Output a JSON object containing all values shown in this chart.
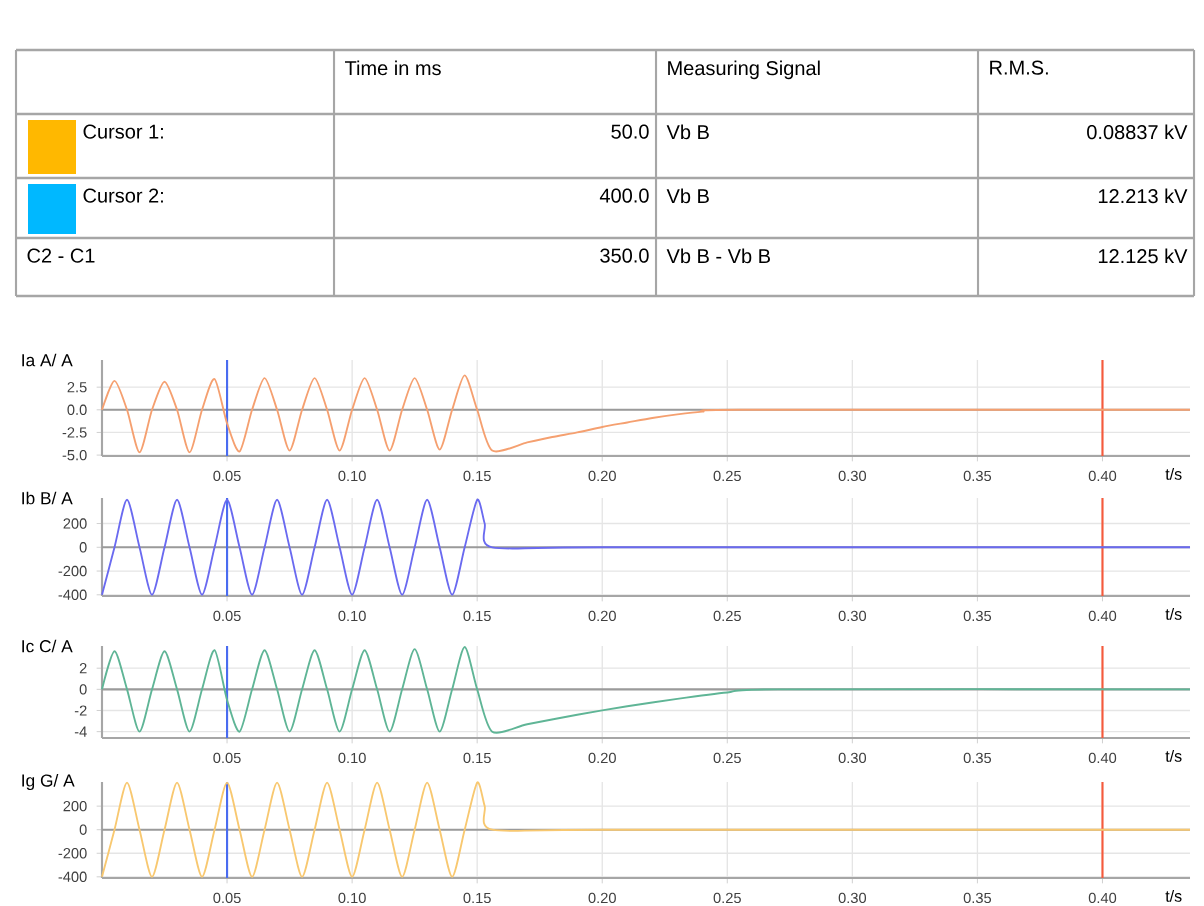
{
  "chart_data": [
    {
      "type": "other",
      "annotations": [
        "Time in ms",
        "Measuring Signal",
        "R.M.S.",
        "Cursor 1:",
        "50.0",
        "Vb B",
        "0.08837 kV",
        "Cursor 2:",
        "400.0",
        "Vb B",
        "12.213 kV",
        "C2 - C1",
        "350.0",
        "Vb B - Vb B",
        "12.125 kV"
      ],
      "colors": [
        "#ffb800",
        "#00b8ff"
      ]
    },
    {
      "type": "line",
      "ylabel": "Ia A/ A",
      "xlabel": "t/s",
      "grid": true,
      "xlim": [
        0,
        0.435
      ],
      "ylim": [
        -5.1,
        5.5
      ],
      "xticks": [
        {
          "value": 0.05,
          "label": "0.05"
        },
        {
          "value": 0.1,
          "label": "0.10"
        },
        {
          "value": 0.15,
          "label": "0.15"
        },
        {
          "value": 0.2,
          "label": "0.20"
        },
        {
          "value": 0.25,
          "label": "0.25"
        },
        {
          "value": 0.3,
          "label": "0.30"
        },
        {
          "value": 0.35,
          "label": "0.35"
        },
        {
          "value": 0.4,
          "label": "0.40"
        }
      ],
      "yticks": [
        {
          "value": -5,
          "label": "-5.0"
        },
        {
          "value": -2.5,
          "label": "-2.5"
        },
        {
          "value": 0,
          "label": "0.0"
        },
        {
          "value": 2.5,
          "label": "2.5"
        }
      ],
      "ref_lines": [
        {
          "axis": "y",
          "value": 0,
          "color": "#9a9a9a"
        },
        {
          "axis": "x",
          "value": 0.05,
          "color": "#4a6cf0"
        },
        {
          "axis": "x",
          "value": 0.4,
          "color": "#f55a3c"
        }
      ],
      "series": [
        {
          "color": "#f5a070",
          "x": [
            0,
            0.005,
            0.01,
            0.015,
            0.02,
            0.025,
            0.03,
            0.035,
            0.04,
            0.045,
            0.05,
            0.055,
            0.06,
            0.065,
            0.07,
            0.075,
            0.08,
            0.085,
            0.09,
            0.095,
            0.1,
            0.105,
            0.11,
            0.115,
            0.12,
            0.125,
            0.13,
            0.135,
            0.14,
            0.145,
            0.15,
            0.156,
            0.17,
            0.18,
            0.19,
            0.2,
            0.21,
            0.22,
            0.23,
            0.24,
            0.255,
            0.435
          ],
          "values": [
            0,
            3.2,
            0,
            -4.7,
            0,
            3.1,
            0,
            -4.7,
            0,
            3.4,
            -1.5,
            -4.6,
            0,
            3.5,
            0,
            -4.5,
            0,
            3.5,
            0,
            -4.5,
            0,
            3.5,
            0,
            -4.5,
            0,
            3.5,
            0,
            -4.4,
            0,
            3.8,
            0,
            -4.5,
            -3.6,
            -3.0,
            -2.5,
            -1.9,
            -1.4,
            -0.9,
            -0.5,
            -0.2,
            0,
            0
          ]
        }
      ]
    },
    {
      "type": "line",
      "ylabel": "Ib B/ A",
      "xlabel": "t/s",
      "grid": true,
      "xlim": [
        0,
        0.435
      ],
      "ylim": [
        -410,
        415
      ],
      "xticks": [
        {
          "value": 0.05,
          "label": "0.05"
        },
        {
          "value": 0.1,
          "label": "0.10"
        },
        {
          "value": 0.15,
          "label": "0.15"
        },
        {
          "value": 0.2,
          "label": "0.20"
        },
        {
          "value": 0.25,
          "label": "0.25"
        },
        {
          "value": 0.3,
          "label": "0.30"
        },
        {
          "value": 0.35,
          "label": "0.35"
        },
        {
          "value": 0.4,
          "label": "0.40"
        }
      ],
      "yticks": [
        -400,
        -200,
        0,
        200
      ],
      "ref_lines": [
        {
          "axis": "y",
          "value": 0,
          "color": "#9a9a9a"
        },
        {
          "axis": "x",
          "value": 0.05,
          "color": "#4a6cf0"
        },
        {
          "axis": "x",
          "value": 0.4,
          "color": "#f55a3c"
        }
      ],
      "series": [
        {
          "color": "#6a6af0",
          "x": [
            0,
            0.005,
            0.01,
            0.015,
            0.02,
            0.025,
            0.03,
            0.035,
            0.04,
            0.045,
            0.05,
            0.055,
            0.06,
            0.065,
            0.07,
            0.075,
            0.08,
            0.085,
            0.09,
            0.095,
            0.1,
            0.105,
            0.11,
            0.115,
            0.12,
            0.125,
            0.13,
            0.135,
            0.14,
            0.145,
            0.15,
            0.153,
            0.156,
            0.2,
            0.435
          ],
          "values": [
            -400,
            0,
            400,
            0,
            -400,
            0,
            400,
            0,
            -400,
            0,
            400,
            0,
            -400,
            0,
            400,
            0,
            -400,
            0,
            400,
            0,
            -400,
            0,
            400,
            0,
            -400,
            0,
            400,
            0,
            -400,
            0,
            400,
            200,
            0,
            0,
            0
          ]
        }
      ]
    },
    {
      "type": "line",
      "ylabel": "Ic C/ A",
      "xlabel": "t/s",
      "grid": true,
      "xlim": [
        0,
        0.435
      ],
      "ylim": [
        -4.6,
        4.1
      ],
      "xticks": [
        {
          "value": 0.05,
          "label": "0.05"
        },
        {
          "value": 0.1,
          "label": "0.10"
        },
        {
          "value": 0.15,
          "label": "0.15"
        },
        {
          "value": 0.2,
          "label": "0.20"
        },
        {
          "value": 0.25,
          "label": "0.25"
        },
        {
          "value": 0.3,
          "label": "0.30"
        },
        {
          "value": 0.35,
          "label": "0.35"
        },
        {
          "value": 0.4,
          "label": "0.40"
        }
      ],
      "yticks": [
        -4,
        -2,
        0,
        2
      ],
      "ref_lines": [
        {
          "axis": "y",
          "value": 0,
          "color": "#9a9a9a"
        },
        {
          "axis": "x",
          "value": 0.05,
          "color": "#4a6cf0"
        },
        {
          "axis": "x",
          "value": 0.4,
          "color": "#f55a3c"
        }
      ],
      "series": [
        {
          "color": "#5fb596",
          "x": [
            0,
            0.005,
            0.01,
            0.015,
            0.02,
            0.025,
            0.03,
            0.035,
            0.04,
            0.045,
            0.05,
            0.055,
            0.06,
            0.065,
            0.07,
            0.075,
            0.08,
            0.085,
            0.09,
            0.095,
            0.1,
            0.105,
            0.11,
            0.115,
            0.12,
            0.125,
            0.13,
            0.135,
            0.14,
            0.145,
            0.15,
            0.156,
            0.17,
            0.19,
            0.21,
            0.23,
            0.25,
            0.27,
            0.435
          ],
          "values": [
            0,
            3.6,
            0,
            -4.0,
            0,
            3.6,
            0,
            -4.0,
            0,
            3.7,
            -1.0,
            -4.0,
            0,
            3.7,
            0,
            -4.0,
            0,
            3.7,
            0,
            -4.0,
            0,
            3.7,
            0,
            -4.0,
            0,
            3.8,
            0,
            -4.0,
            0,
            4.0,
            0,
            -4.0,
            -3.3,
            -2.4,
            -1.6,
            -0.9,
            -0.3,
            0,
            0
          ]
        }
      ]
    },
    {
      "type": "line",
      "ylabel": "Ig G/ A",
      "xlabel": "t/s",
      "grid": true,
      "xlim": [
        0,
        0.435
      ],
      "ylim": [
        -410,
        405
      ],
      "xticks": [
        {
          "value": 0.05,
          "label": "0.05"
        },
        {
          "value": 0.1,
          "label": "0.10"
        },
        {
          "value": 0.15,
          "label": "0.15"
        },
        {
          "value": 0.2,
          "label": "0.20"
        },
        {
          "value": 0.25,
          "label": "0.25"
        },
        {
          "value": 0.3,
          "label": "0.30"
        },
        {
          "value": 0.35,
          "label": "0.35"
        },
        {
          "value": 0.4,
          "label": "0.40"
        }
      ],
      "yticks": [
        -400,
        -200,
        0,
        200
      ],
      "ref_lines": [
        {
          "axis": "y",
          "value": 0,
          "color": "#9a9a9a"
        },
        {
          "axis": "x",
          "value": 0.05,
          "color": "#4a6cf0"
        },
        {
          "axis": "x",
          "value": 0.4,
          "color": "#f55a3c"
        }
      ],
      "series": [
        {
          "color": "#f8c870",
          "x": [
            0,
            0.005,
            0.01,
            0.015,
            0.02,
            0.025,
            0.03,
            0.035,
            0.04,
            0.045,
            0.05,
            0.055,
            0.06,
            0.065,
            0.07,
            0.075,
            0.08,
            0.085,
            0.09,
            0.095,
            0.1,
            0.105,
            0.11,
            0.115,
            0.12,
            0.125,
            0.13,
            0.135,
            0.14,
            0.145,
            0.15,
            0.153,
            0.156,
            0.2,
            0.435
          ],
          "values": [
            -400,
            0,
            400,
            0,
            -400,
            0,
            400,
            0,
            -400,
            0,
            400,
            0,
            -400,
            0,
            400,
            0,
            -400,
            0,
            400,
            0,
            -400,
            0,
            400,
            0,
            -400,
            0,
            400,
            0,
            -400,
            0,
            400,
            200,
            0,
            0,
            0
          ]
        }
      ]
    }
  ]
}
